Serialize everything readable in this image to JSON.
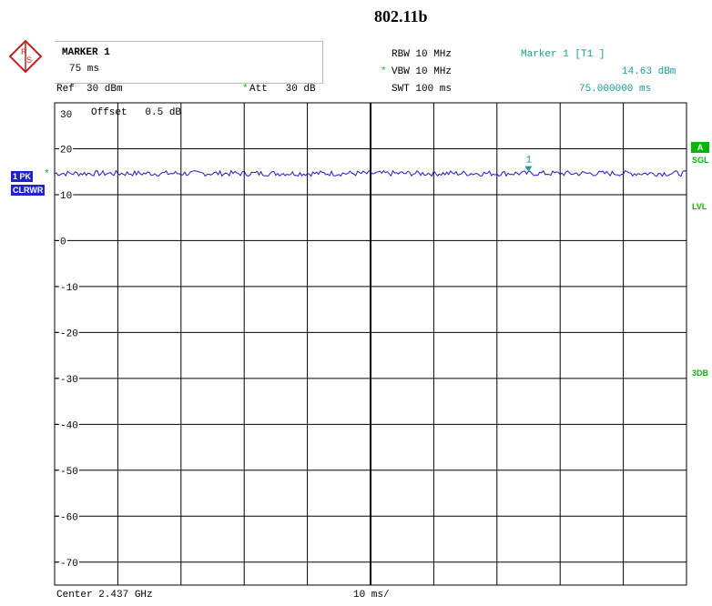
{
  "title": "802.11b",
  "marker_box": {
    "label": "MARKER 1",
    "value": "75 ms"
  },
  "settings": {
    "rbw": "RBW 10 MHz",
    "vbw": "VBW 10 MHz",
    "swt": "SWT 100 ms",
    "ref": "Ref  30 dBm",
    "att": "Att   30 dB",
    "star": "*"
  },
  "marker_readout": {
    "name": "Marker 1 [T1 ]",
    "level": "14.63 dBm",
    "time": "75.000000 ms"
  },
  "offset_label": "Offset   0.5 dB",
  "left_badges": {
    "trace": "1 PK",
    "mode": "CLRWR",
    "star": "*"
  },
  "right_labels": {
    "a": "A",
    "sgl": "SGL",
    "lvl": "LVL",
    "db3": "3DB"
  },
  "footer": {
    "center": "Center 2.437 GHz",
    "span": "10 ms/"
  },
  "colors": {
    "trace": "#1c1ccc",
    "marker": "#1a9a9a",
    "grid": "#000000",
    "green": "#0ab40a",
    "badge_blue": "#2222cc"
  },
  "chart_data": {
    "type": "line",
    "title": "802.11b",
    "xlabel": "10 ms/",
    "ylabel": "",
    "x_range_ms": [
      0,
      100
    ],
    "ylim": [
      -75,
      30
    ],
    "ytick_labels": [
      "30",
      "20",
      "10",
      "0",
      "-10",
      "-20",
      "-30",
      "-40",
      "-50",
      "-60",
      "-70"
    ],
    "yticks": [
      30,
      20,
      10,
      0,
      -10,
      -20,
      -30,
      -40,
      -50,
      -60,
      -70
    ],
    "grid": true,
    "series": [
      {
        "trace_level_dbm": 14.63,
        "noise_dbm": 0.6
      }
    ],
    "marker": {
      "label": "1",
      "x_ms": 75,
      "y_dbm": 14.63
    }
  }
}
